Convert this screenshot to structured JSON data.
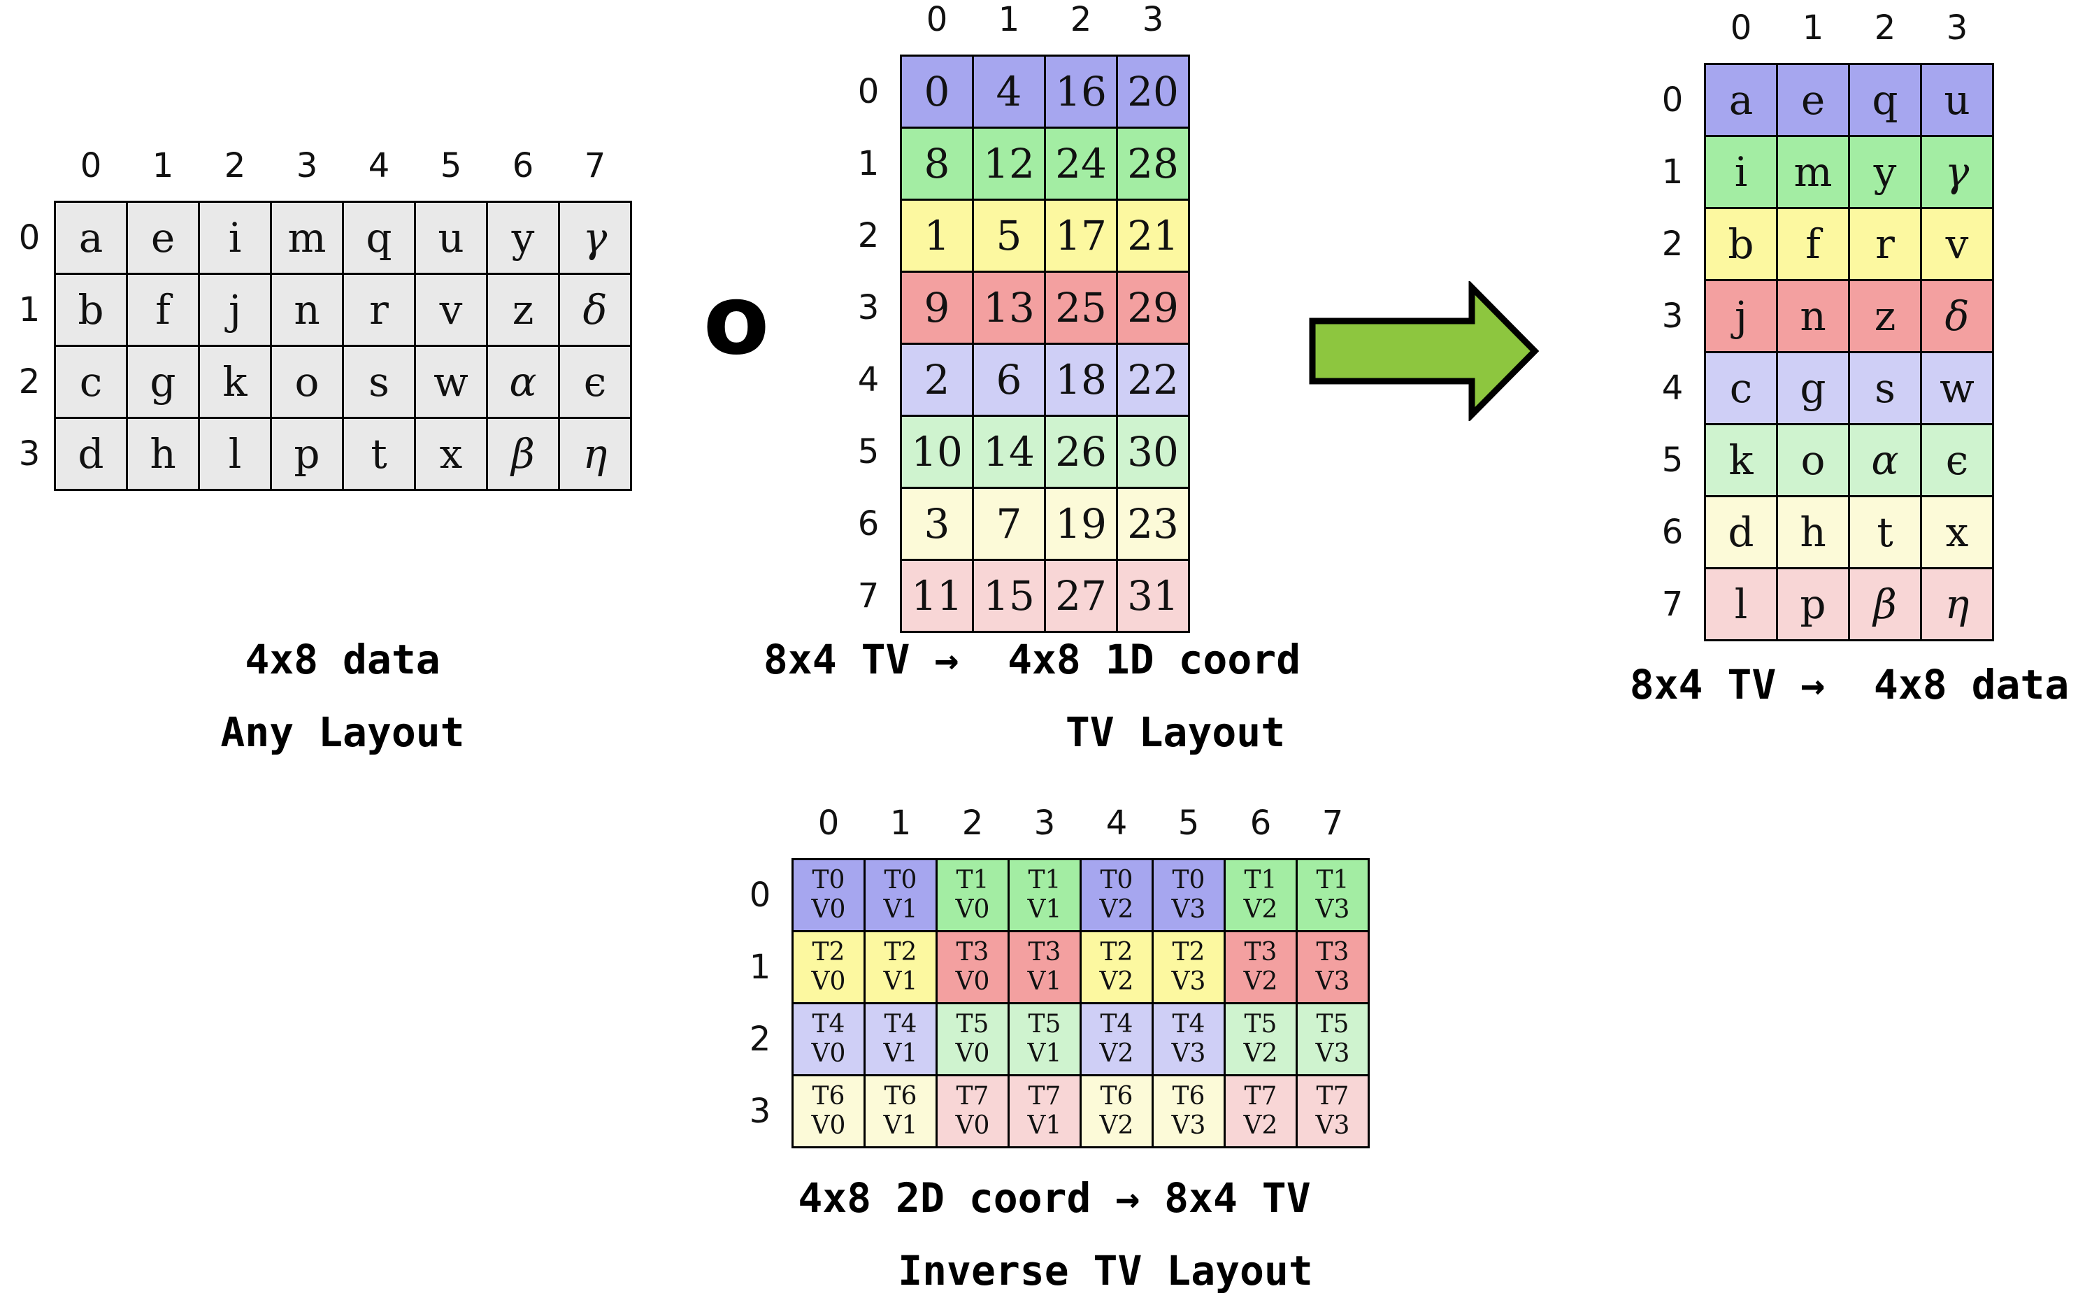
{
  "palette": {
    "blue": "#a6a6ef",
    "green": "#a3eda3",
    "yellow": "#fcf8a0",
    "red": "#f3a0a0",
    "blue_light": "#cfcff6",
    "green_light": "#cff3cf",
    "yellow_light": "#fcfad8",
    "red_light": "#f8d6d6",
    "gray": "#e9e9e9",
    "arrow_green": "#8dc63f"
  },
  "compose_operator": "o",
  "any_layout": {
    "caption_line1": "4x8 data",
    "caption_line2": "Any Layout",
    "col_headers": [
      "0",
      "1",
      "2",
      "3",
      "4",
      "5",
      "6",
      "7"
    ],
    "row_headers": [
      "0",
      "1",
      "2",
      "3"
    ],
    "cell_color": "gray",
    "cells": [
      [
        "a",
        "e",
        "i",
        "m",
        "q",
        "u",
        "y",
        "γ"
      ],
      [
        "b",
        "f",
        "j",
        "n",
        "r",
        "v",
        "z",
        "δ"
      ],
      [
        "c",
        "g",
        "k",
        "o",
        "s",
        "w",
        "α",
        "ϵ"
      ],
      [
        "d",
        "h",
        "l",
        "p",
        "t",
        "x",
        "β",
        "η"
      ]
    ]
  },
  "tv_layout": {
    "caption_line1": "8x4 TV →  4x8 1D coord",
    "caption_line2": "TV Layout",
    "col_headers": [
      "0",
      "1",
      "2",
      "3"
    ],
    "row_headers": [
      "0",
      "1",
      "2",
      "3",
      "4",
      "5",
      "6",
      "7"
    ],
    "row_colors": [
      "blue",
      "green",
      "yellow",
      "red",
      "blue_light",
      "green_light",
      "yellow_light",
      "red_light"
    ],
    "cells": [
      [
        "0",
        "4",
        "16",
        "20"
      ],
      [
        "8",
        "12",
        "24",
        "28"
      ],
      [
        "1",
        "5",
        "17",
        "21"
      ],
      [
        "9",
        "13",
        "25",
        "29"
      ],
      [
        "2",
        "6",
        "18",
        "22"
      ],
      [
        "10",
        "14",
        "26",
        "30"
      ],
      [
        "3",
        "7",
        "19",
        "23"
      ],
      [
        "11",
        "15",
        "27",
        "31"
      ]
    ]
  },
  "result_layout": {
    "caption_line1": "8x4 TV →  4x8 data",
    "col_headers": [
      "0",
      "1",
      "2",
      "3"
    ],
    "row_headers": [
      "0",
      "1",
      "2",
      "3",
      "4",
      "5",
      "6",
      "7"
    ],
    "row_colors": [
      "blue",
      "green",
      "yellow",
      "red",
      "blue_light",
      "green_light",
      "yellow_light",
      "red_light"
    ],
    "cells": [
      [
        "a",
        "e",
        "q",
        "u"
      ],
      [
        "i",
        "m",
        "y",
        "γ"
      ],
      [
        "b",
        "f",
        "r",
        "v"
      ],
      [
        "j",
        "n",
        "z",
        "δ"
      ],
      [
        "c",
        "g",
        "s",
        "w"
      ],
      [
        "k",
        "o",
        "α",
        "ϵ"
      ],
      [
        "d",
        "h",
        "t",
        "x"
      ],
      [
        "l",
        "p",
        "β",
        "η"
      ]
    ]
  },
  "inverse_tv_layout": {
    "caption_line1": "4x8 2D coord → 8x4 TV",
    "caption_line2": "Inverse TV Layout",
    "col_headers": [
      "0",
      "1",
      "2",
      "3",
      "4",
      "5",
      "6",
      "7"
    ],
    "row_headers": [
      "0",
      "1",
      "2",
      "3"
    ],
    "cells": [
      [
        {
          "t": "T0",
          "v": "V0",
          "color": "blue"
        },
        {
          "t": "T0",
          "v": "V1",
          "color": "blue"
        },
        {
          "t": "T1",
          "v": "V0",
          "color": "green"
        },
        {
          "t": "T1",
          "v": "V1",
          "color": "green"
        },
        {
          "t": "T0",
          "v": "V2",
          "color": "blue"
        },
        {
          "t": "T0",
          "v": "V3",
          "color": "blue"
        },
        {
          "t": "T1",
          "v": "V2",
          "color": "green"
        },
        {
          "t": "T1",
          "v": "V3",
          "color": "green"
        }
      ],
      [
        {
          "t": "T2",
          "v": "V0",
          "color": "yellow"
        },
        {
          "t": "T2",
          "v": "V1",
          "color": "yellow"
        },
        {
          "t": "T3",
          "v": "V0",
          "color": "red"
        },
        {
          "t": "T3",
          "v": "V1",
          "color": "red"
        },
        {
          "t": "T2",
          "v": "V2",
          "color": "yellow"
        },
        {
          "t": "T2",
          "v": "V3",
          "color": "yellow"
        },
        {
          "t": "T3",
          "v": "V2",
          "color": "red"
        },
        {
          "t": "T3",
          "v": "V3",
          "color": "red"
        }
      ],
      [
        {
          "t": "T4",
          "v": "V0",
          "color": "blue_light"
        },
        {
          "t": "T4",
          "v": "V1",
          "color": "blue_light"
        },
        {
          "t": "T5",
          "v": "V0",
          "color": "green_light"
        },
        {
          "t": "T5",
          "v": "V1",
          "color": "green_light"
        },
        {
          "t": "T4",
          "v": "V2",
          "color": "blue_light"
        },
        {
          "t": "T4",
          "v": "V3",
          "color": "blue_light"
        },
        {
          "t": "T5",
          "v": "V2",
          "color": "green_light"
        },
        {
          "t": "T5",
          "v": "V3",
          "color": "green_light"
        }
      ],
      [
        {
          "t": "T6",
          "v": "V0",
          "color": "yellow_light"
        },
        {
          "t": "T6",
          "v": "V1",
          "color": "yellow_light"
        },
        {
          "t": "T7",
          "v": "V0",
          "color": "red_light"
        },
        {
          "t": "T7",
          "v": "V1",
          "color": "red_light"
        },
        {
          "t": "T6",
          "v": "V2",
          "color": "yellow_light"
        },
        {
          "t": "T6",
          "v": "V3",
          "color": "yellow_light"
        },
        {
          "t": "T7",
          "v": "V2",
          "color": "red_light"
        },
        {
          "t": "T7",
          "v": "V3",
          "color": "red_light"
        }
      ]
    ]
  }
}
